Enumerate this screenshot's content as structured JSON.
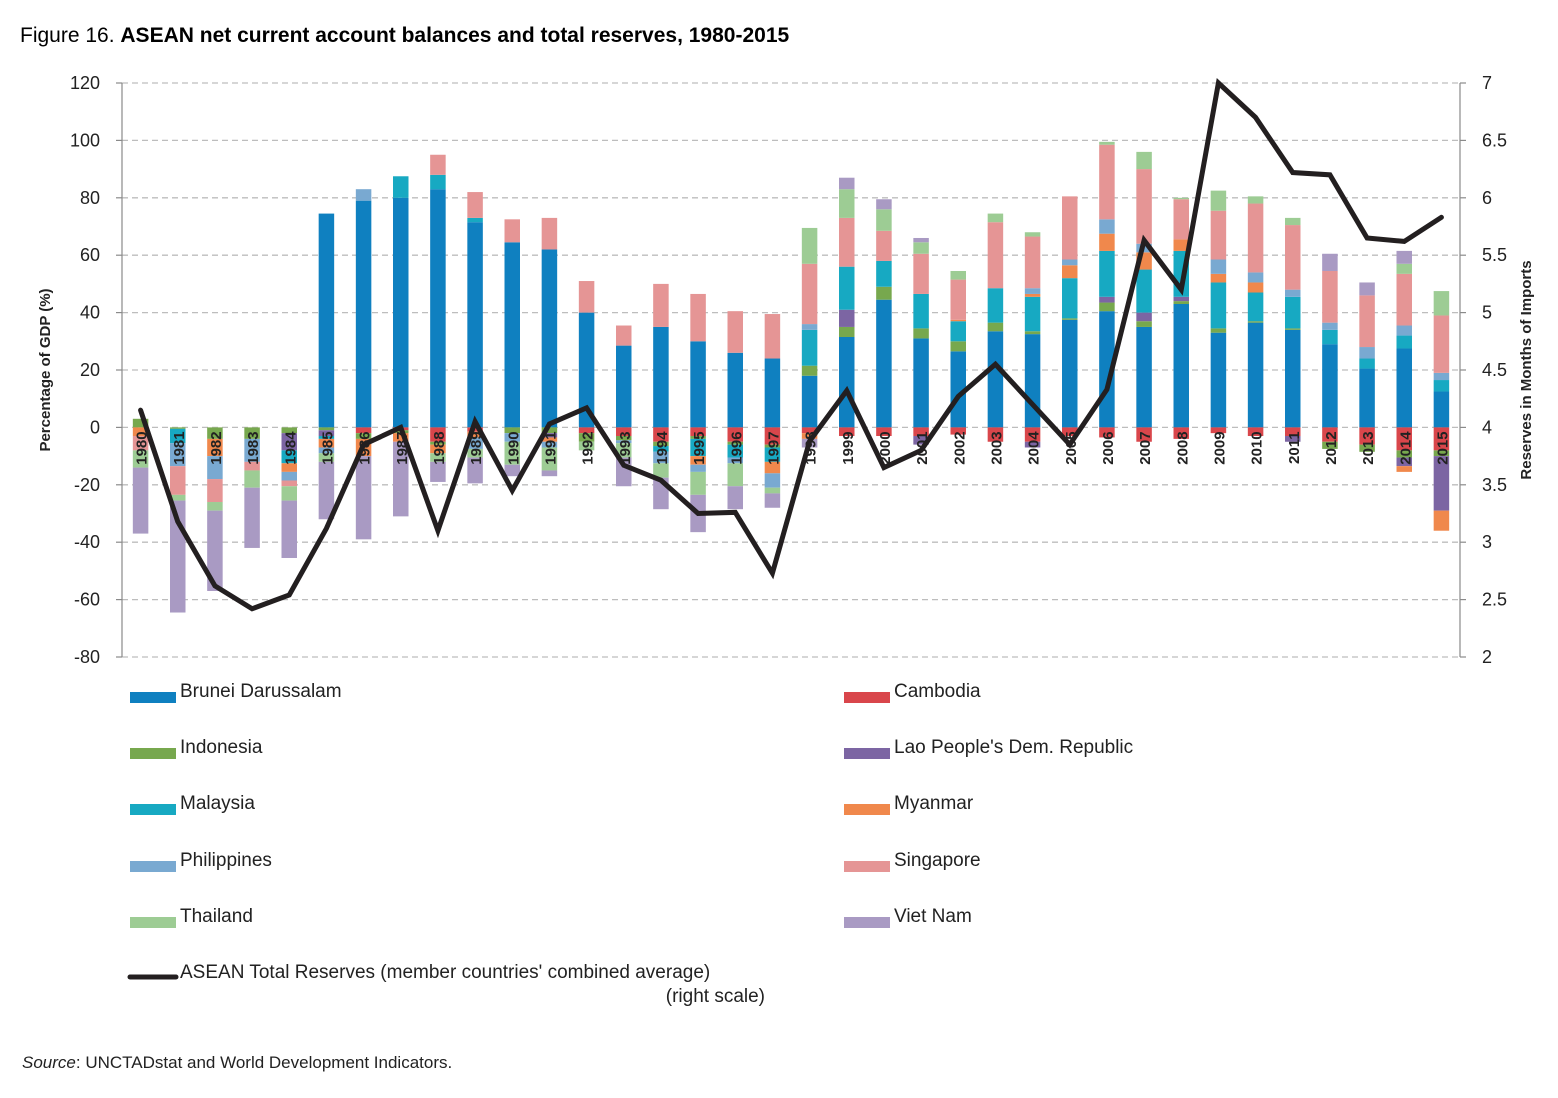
{
  "figure_label": "Figure 16. ",
  "figure_title": "ASEAN net current account balances and total reserves, 1980-2015",
  "source_label": "Source",
  "source_text": ": UNCTADstat and World Development Indicators.",
  "chart_data": {
    "type": "bar",
    "stacked": true,
    "title": "ASEAN net current account balances and total reserves, 1980-2015",
    "ylabel": "Percentage of GDP (%)",
    "y2label": "Reserves in Months of Imports",
    "ylim": [
      -80,
      120
    ],
    "y2lim": [
      2,
      7
    ],
    "yticks": [
      "120",
      "100",
      "80",
      "60",
      "40",
      "20",
      "0",
      "-20",
      "-40",
      "-60",
      "-80"
    ],
    "y2ticks": [
      "7",
      "6.5",
      "6",
      "5.5",
      "5",
      "4.5",
      "4",
      "3.5",
      "3",
      "2.5",
      "2"
    ],
    "grid": true,
    "legend_position": "bottom",
    "categories": [
      "1980",
      "1981",
      "1982",
      "1983",
      "1984",
      "1985",
      "1986",
      "1987",
      "1988",
      "1989",
      "1990",
      "1991",
      "1992",
      "1993",
      "1994",
      "1995",
      "1996",
      "1997",
      "1998",
      "1999",
      "2000",
      "2001",
      "2002",
      "2003",
      "2004",
      "2005",
      "2006",
      "2007",
      "2008",
      "2009",
      "2010",
      "2011",
      "2012",
      "2013",
      "2014",
      "2015"
    ],
    "series": [
      {
        "name": "Brunei Darussalam",
        "color": "#0f80c0",
        "values": [
          0,
          0,
          0,
          0,
          0,
          74.5,
          79,
          80,
          83,
          71.5,
          64.5,
          62,
          40,
          28.5,
          35,
          30,
          26,
          24,
          18,
          31.5,
          44.5,
          31,
          26.5,
          33.5,
          32.5,
          37.5,
          40.5,
          35,
          43,
          33,
          36.5,
          34,
          29,
          20.5,
          27.5,
          12.5
        ]
      },
      {
        "name": "Cambodia",
        "color": "#d9464b",
        "values": [
          0,
          0,
          0,
          0,
          0,
          0,
          -2,
          -1,
          -5,
          -1.5,
          0,
          0,
          -2,
          -3,
          -5,
          -3,
          -5,
          -6,
          -2,
          -3,
          -3,
          -3,
          -2.5,
          -5,
          -5,
          -3,
          -3.5,
          -5,
          -4,
          -2,
          -3,
          -3,
          -5,
          -6,
          -8,
          -8
        ]
      },
      {
        "name": "Indonesia",
        "color": "#77a84e",
        "values": [
          3,
          -0.5,
          -4,
          -4,
          -2,
          -1,
          -2,
          -1,
          -1,
          0,
          -2,
          -2,
          -3,
          -1.5,
          -1.5,
          -1,
          -1,
          -1,
          3.5,
          3.5,
          4.5,
          3.5,
          3.5,
          3,
          1,
          0.5,
          3,
          2,
          1,
          1.5,
          0.5,
          0.5,
          -2.5,
          -2.5,
          -2.5,
          -2
        ]
      },
      {
        "name": "Lao People's Dem. Republic",
        "color": "#7c65a3",
        "values": [
          0,
          0,
          0,
          0,
          -6,
          -2,
          0,
          0,
          0,
          0,
          0,
          -1.5,
          0,
          0,
          0,
          0,
          0,
          0,
          0,
          6,
          0,
          -3,
          0,
          0,
          -2,
          0,
          2,
          3,
          1.5,
          0,
          0,
          -2,
          0,
          0,
          -3,
          -19
        ]
      },
      {
        "name": "Malaysia",
        "color": "#17a9c2",
        "values": [
          0,
          -5,
          0,
          0,
          -4.5,
          -1,
          0,
          7.5,
          5,
          1.5,
          0,
          0,
          0,
          0,
          -2,
          -6,
          -4.5,
          -5,
          12.5,
          15,
          9,
          12,
          7,
          12,
          12,
          14,
          16,
          15,
          16,
          16,
          10,
          11,
          5,
          3.5,
          4.5,
          4
        ]
      },
      {
        "name": "Myanmar",
        "color": "#f0884c",
        "values": [
          -3,
          0,
          -6,
          0,
          -3,
          -3,
          -6,
          -3,
          -3,
          -2,
          0,
          -1.5,
          0,
          0,
          0,
          -3,
          0,
          -4,
          -2,
          0,
          0,
          0,
          0.5,
          0,
          1,
          4.5,
          6,
          6,
          4,
          3,
          3.5,
          0,
          0,
          0,
          -2,
          -7
        ]
      },
      {
        "name": "Philippines",
        "color": "#79a9d1",
        "values": [
          0,
          -8,
          -8,
          -8,
          -3,
          -2,
          4,
          0,
          0,
          -4,
          -3,
          -2,
          0,
          -1,
          -4,
          -2.5,
          -2,
          -5,
          2,
          0,
          0,
          0,
          0,
          0,
          2,
          2,
          5,
          3,
          0,
          5,
          3.5,
          2.5,
          2.5,
          4,
          3.5,
          2.5
        ]
      },
      {
        "name": "Singapore",
        "color": "#e59595",
        "values": [
          -5,
          -10,
          -8,
          -3,
          -2,
          0,
          0,
          0,
          7,
          9,
          8,
          11,
          11,
          7,
          15,
          16.5,
          14.5,
          15.5,
          21,
          17,
          10.5,
          14,
          14,
          23,
          18,
          22,
          26,
          26,
          14,
          17,
          24,
          22.5,
          18,
          18,
          18,
          20
        ]
      },
      {
        "name": "Thailand",
        "color": "#9dcc94",
        "values": [
          -6,
          -2,
          -3,
          -6,
          -5,
          -3,
          0,
          0,
          -3,
          -3,
          -8,
          -8,
          -3,
          -5,
          -5,
          -8,
          -8,
          -2,
          12.5,
          10,
          7.5,
          4,
          3,
          3,
          1.5,
          0,
          1,
          6,
          0.5,
          7,
          2.5,
          2.5,
          0,
          0,
          3.5,
          8.5
        ]
      },
      {
        "name": "Viet Nam",
        "color": "#a99ac3",
        "values": [
          -23,
          -39,
          -28,
          -21,
          -20,
          -20,
          -29,
          -26,
          -7,
          -9,
          -4,
          -2,
          0,
          -10,
          -11,
          -13,
          -8,
          -5,
          -3,
          4,
          3.5,
          1.5,
          0,
          0,
          0,
          0,
          0,
          0,
          0,
          0,
          0,
          0,
          6,
          4.5,
          4.5,
          0
        ]
      }
    ],
    "line": {
      "name": "ASEAN Total Reserves (member countries' combined average) (right scale)",
      "legend_text_1": "ASEAN Total Reserves (member countries' combined average)",
      "legend_text_2": "(right scale)",
      "axis": "right",
      "color": "#231f20",
      "values": [
        4.15,
        3.18,
        2.62,
        2.42,
        2.54,
        3.12,
        3.85,
        4.0,
        3.1,
        4.05,
        3.45,
        4.03,
        4.17,
        3.67,
        3.54,
        3.25,
        3.26,
        2.73,
        3.88,
        4.32,
        3.65,
        3.8,
        4.27,
        4.55,
        4.2,
        3.85,
        4.33,
        5.63,
        5.2,
        7.0,
        6.7,
        6.22,
        6.2,
        5.65,
        5.62,
        5.83
      ]
    }
  }
}
